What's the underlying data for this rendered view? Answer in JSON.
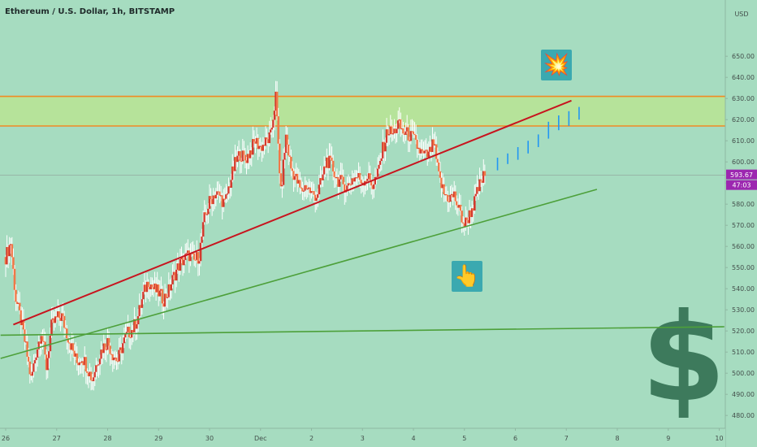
{
  "header": {
    "title": "Ethereum / U.S. Dollar, 1h, BITSTAMP"
  },
  "price_axis": {
    "currency": "USD"
  },
  "markers": {
    "last_price": "593.67",
    "countdown": "47:03"
  },
  "colors": {
    "background": "#a6dcc0",
    "zone_fill": "#b6e39a",
    "zone_border": "#f08a24",
    "candle_up": "#d23a2e",
    "candle_down": "#f07848",
    "wick": "#ffffff",
    "resistance_line": "#c8141e",
    "support_line": "#4da03a",
    "projection": "#2196f3",
    "price_label": "#9c27b0",
    "axis_text": "#44504c",
    "icon_box": "#3ba9b0",
    "dollar": "#3d7a5c"
  },
  "icons": {
    "explosion": "explosion-icon",
    "pointing_hand": "pointing-hand-icon",
    "dollar": "dollar-sign-icon"
  },
  "chart_data": {
    "type": "candlestick",
    "title": "Ethereum / U.S. Dollar, 1h, BITSTAMP",
    "ylabel": "USD",
    "ylim": [
      477,
      660
    ],
    "y_ticks": [
      480,
      490,
      500,
      510,
      520,
      530,
      540,
      550,
      560,
      570,
      580,
      590,
      600,
      610,
      620,
      630,
      640,
      650
    ],
    "x_ticks": [
      "26",
      "27",
      "28",
      "29",
      "30",
      "Dec",
      "2",
      "3",
      "4",
      "5",
      "6",
      "7",
      "8",
      "9",
      "10"
    ],
    "x_tick_days": [
      0,
      1,
      2,
      3,
      4,
      5,
      6,
      7,
      8,
      9,
      10,
      11,
      12,
      13,
      14
    ],
    "grid": false,
    "last_price": 593.67,
    "horizontal_zone": {
      "low": 617,
      "high": 631
    },
    "trendlines": [
      {
        "name": "resistance",
        "from": [
          0.15,
          523
        ],
        "to": [
          11.1,
          629
        ]
      },
      {
        "name": "support",
        "from": [
          -0.1,
          507
        ],
        "to": [
          11.6,
          587
        ]
      },
      {
        "name": "long-term support",
        "from": [
          -0.1,
          518
        ],
        "to": [
          14.1,
          522
        ]
      }
    ],
    "close_path": [
      [
        0.0,
        555
      ],
      [
        0.1,
        562
      ],
      [
        0.2,
        535
      ],
      [
        0.3,
        525
      ],
      [
        0.4,
        512
      ],
      [
        0.5,
        497
      ],
      [
        0.6,
        510
      ],
      [
        0.7,
        520
      ],
      [
        0.8,
        503
      ],
      [
        0.9,
        522
      ],
      [
        1.0,
        526
      ],
      [
        1.1,
        527
      ],
      [
        1.2,
        519
      ],
      [
        1.3,
        512
      ],
      [
        1.4,
        505
      ],
      [
        1.5,
        508
      ],
      [
        1.6,
        503
      ],
      [
        1.7,
        497
      ],
      [
        1.8,
        506
      ],
      [
        1.9,
        512
      ],
      [
        2.0,
        515
      ],
      [
        2.1,
        509
      ],
      [
        2.2,
        506
      ],
      [
        2.3,
        514
      ],
      [
        2.4,
        519
      ],
      [
        2.5,
        521
      ],
      [
        2.6,
        527
      ],
      [
        2.7,
        537
      ],
      [
        2.8,
        544
      ],
      [
        2.9,
        540
      ],
      [
        3.0,
        538
      ],
      [
        3.1,
        535
      ],
      [
        3.2,
        539
      ],
      [
        3.3,
        546
      ],
      [
        3.4,
        551
      ],
      [
        3.5,
        554
      ],
      [
        3.6,
        556
      ],
      [
        3.7,
        553
      ],
      [
        3.8,
        556
      ],
      [
        3.9,
        573
      ],
      [
        4.0,
        581
      ],
      [
        4.1,
        585
      ],
      [
        4.2,
        584
      ],
      [
        4.3,
        580
      ],
      [
        4.4,
        590
      ],
      [
        4.5,
        599
      ],
      [
        4.6,
        604
      ],
      [
        4.7,
        601
      ],
      [
        4.8,
        605
      ],
      [
        4.9,
        610
      ],
      [
        5.0,
        607
      ],
      [
        5.1,
        609
      ],
      [
        5.2,
        612
      ],
      [
        5.3,
        631
      ],
      [
        5.4,
        585
      ],
      [
        5.5,
        612
      ],
      [
        5.6,
        597
      ],
      [
        5.7,
        592
      ],
      [
        5.8,
        586
      ],
      [
        5.9,
        589
      ],
      [
        6.0,
        585
      ],
      [
        6.1,
        584
      ],
      [
        6.2,
        591
      ],
      [
        6.3,
        601
      ],
      [
        6.4,
        598
      ],
      [
        6.5,
        592
      ],
      [
        6.6,
        590
      ],
      [
        6.7,
        588
      ],
      [
        6.8,
        592
      ],
      [
        6.9,
        593
      ],
      [
        7.0,
        591
      ],
      [
        7.1,
        593
      ],
      [
        7.2,
        589
      ],
      [
        7.3,
        594
      ],
      [
        7.4,
        606
      ],
      [
        7.5,
        615
      ],
      [
        7.6,
        613
      ],
      [
        7.7,
        618
      ],
      [
        7.8,
        614
      ],
      [
        7.9,
        613
      ],
      [
        8.0,
        611
      ],
      [
        8.1,
        606
      ],
      [
        8.2,
        603
      ],
      [
        8.3,
        603
      ],
      [
        8.4,
        609
      ],
      [
        8.5,
        593
      ],
      [
        8.6,
        585
      ],
      [
        8.7,
        583
      ],
      [
        8.8,
        584
      ],
      [
        8.9,
        577
      ],
      [
        9.0,
        570
      ],
      [
        9.1,
        575
      ],
      [
        9.2,
        581
      ],
      [
        9.3,
        589
      ],
      [
        9.4,
        594
      ]
    ],
    "projection_bars": [
      [
        9.65,
        596,
        602
      ],
      [
        9.85,
        599,
        604
      ],
      [
        10.05,
        601,
        607
      ],
      [
        10.25,
        604,
        610
      ],
      [
        10.45,
        607,
        613
      ],
      [
        10.65,
        611,
        619
      ],
      [
        10.85,
        615,
        622
      ],
      [
        11.05,
        617,
        624
      ],
      [
        11.25,
        620,
        626
      ]
    ],
    "annotations": [
      {
        "type": "icon",
        "icon": "explosion-icon",
        "day": 10.8,
        "price": 646
      },
      {
        "type": "icon",
        "icon": "pointing-hand-icon",
        "day": 9.05,
        "price": 546
      },
      {
        "type": "watermark",
        "icon": "dollar-sign-icon",
        "text": "$"
      }
    ]
  }
}
